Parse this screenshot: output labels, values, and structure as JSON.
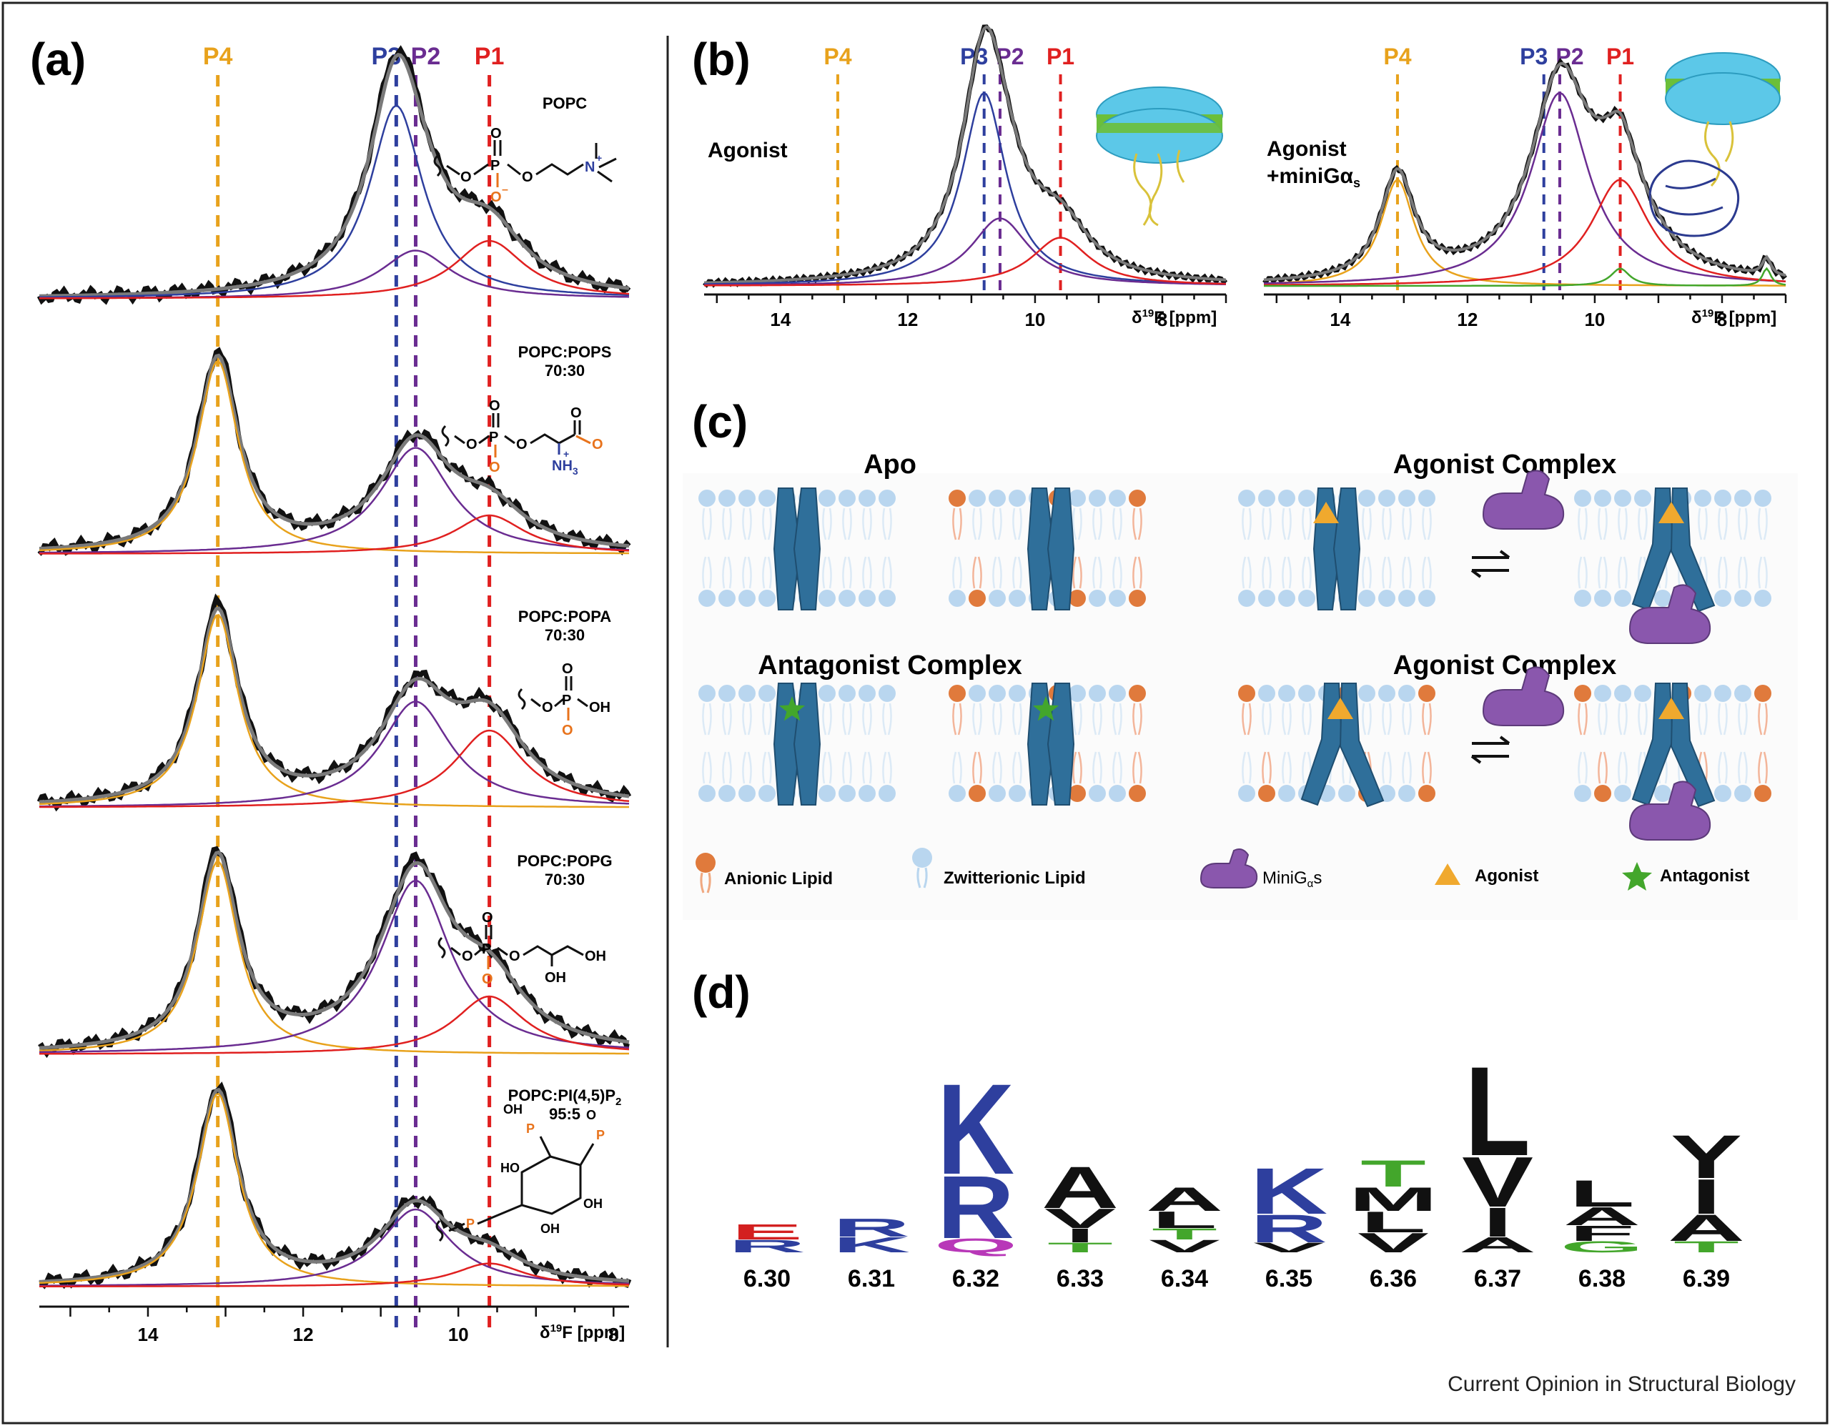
{
  "footer": {
    "journal": "Current Opinion in Structural Biology"
  },
  "colors": {
    "P4": "#e8a21c",
    "P3": "#2e3f9e",
    "P2": "#6a2c91",
    "P1": "#e02020",
    "fit": "#7a7a7a",
    "data": "#111111",
    "green": "#43a62b",
    "receptor": "#2f6f9a",
    "zwitter": "#b9d6ef",
    "anionic": "#e07a3c",
    "gprotein": "#8a57ad"
  },
  "panel_a": {
    "label": "(a)",
    "peaks": [
      "P4",
      "P3",
      "P2",
      "P1"
    ],
    "axis": {
      "ticks": [
        "14",
        "12",
        "10",
        "8"
      ],
      "xlabel_prefix": "δ",
      "xlabel_sup": "19",
      "xlabel_suffix": "F [ppm]"
    },
    "spectra": [
      {
        "name": "POPC",
        "ratio": "",
        "weights": {
          "P4": 0.0,
          "P3": 1.0,
          "P2": 0.25,
          "P1": 0.3
        }
      },
      {
        "name": "POPC:POPS",
        "ratio": "70:30",
        "weights": {
          "P4": 1.0,
          "P3": 0.0,
          "P2": 0.55,
          "P1": 0.2
        }
      },
      {
        "name": "POPC:POPA",
        "ratio": "70:30",
        "weights": {
          "P4": 1.0,
          "P3": 0.0,
          "P2": 0.55,
          "P1": 0.4
        }
      },
      {
        "name": "POPC:POPG",
        "ratio": "70:30",
        "weights": {
          "P4": 1.0,
          "P3": 0.0,
          "P2": 0.9,
          "P1": 0.3
        }
      },
      {
        "name": "POPC:PI(4,5)P",
        "name_sub": "2",
        "ratio": "95:5",
        "weights": {
          "P4": 1.0,
          "P3": 0.0,
          "P2": 0.4,
          "P1": 0.12
        }
      }
    ],
    "chem": {
      "popc": {
        "o1": "O",
        "p": "P",
        "o2": "O",
        "o_top": "O",
        "o_neg": "O",
        "charge_neg": "–",
        "n": "N",
        "charge_pos": "+"
      },
      "pops": {
        "o1": "O",
        "p": "P",
        "o2": "O",
        "o_top": "O",
        "o_neg": "O",
        "nh3": "NH",
        "nh3_sub": "3",
        "plus": "+",
        "coo_o": "O",
        "coo_neg": "O"
      },
      "popa": {
        "o1": "O",
        "p": "P",
        "o_top": "O",
        "oh": "OH",
        "o_neg": "O"
      },
      "popg": {
        "o1": "O",
        "p": "P",
        "o2": "O",
        "o_top": "O",
        "o_neg": "O",
        "oh1": "OH",
        "oh2": "OH"
      },
      "pip2": {
        "oh_a": "OH",
        "oh_b": "OH",
        "oh_c": "OH",
        "ho": "HO",
        "p1": "P",
        "p2": "P",
        "p3": "P",
        "o": "O"
      }
    }
  },
  "panel_b": {
    "label": "(b)",
    "axis": {
      "ticks": [
        "14",
        "12",
        "10",
        "8"
      ],
      "xlabel_prefix": "δ",
      "xlabel_sup": "19",
      "xlabel_suffix": "F [ppm]"
    },
    "left": {
      "condition": "Agonist",
      "peaks": [
        "P4",
        "P3",
        "P2",
        "P1"
      ]
    },
    "right": {
      "condition_line1": "Agonist",
      "condition_line2": "+miniGα",
      "condition_sub": "s",
      "peaks": [
        "P4",
        "P3",
        "P2",
        "P1"
      ]
    }
  },
  "panel_c": {
    "label": "(c)",
    "titles": {
      "apo": "Apo",
      "agonist_complex_top": "Agonist Complex",
      "antagonist": "Antagonist Complex",
      "agonist_complex_bottom": "Agonist Complex"
    },
    "legend": {
      "anionic": "Anionic Lipid",
      "zwitterionic": "Zwitterionic Lipid",
      "minig_prefix": "MiniG",
      "minig_sub": "α",
      "minig_suffix": "s",
      "agonist": "Agonist",
      "antagonist": "Antagonist"
    }
  },
  "panel_d": {
    "label": "(d)",
    "positions": [
      "6.30",
      "6.31",
      "6.32",
      "6.33",
      "6.34",
      "6.35",
      "6.36",
      "6.37",
      "6.38",
      "6.39"
    ],
    "stacks": [
      [
        {
          "l": "E",
          "c": "#d32020"
        },
        {
          "l": "R",
          "c": "#2e3f9e"
        }
      ],
      [
        {
          "l": "R",
          "c": "#2e3f9e"
        },
        {
          "l": "K",
          "c": "#2e3f9e"
        }
      ],
      [
        {
          "l": "K",
          "c": "#2e3f9e"
        },
        {
          "l": "R",
          "c": "#2e3f9e"
        },
        {
          "l": "Q",
          "c": "#b838b8"
        }
      ],
      [
        {
          "l": "A",
          "c": "#111111"
        },
        {
          "l": "V",
          "c": "#111111"
        },
        {
          "l": "I",
          "c": "#111111"
        },
        {
          "l": "T",
          "c": "#43a62b"
        }
      ],
      [
        {
          "l": "A",
          "c": "#111111"
        },
        {
          "l": "L",
          "c": "#111111"
        },
        {
          "l": "T",
          "c": "#43a62b"
        },
        {
          "l": "V",
          "c": "#111111"
        }
      ],
      [
        {
          "l": "K",
          "c": "#2e3f9e"
        },
        {
          "l": "R",
          "c": "#2e3f9e"
        },
        {
          "l": "V",
          "c": "#111111"
        }
      ],
      [
        {
          "l": "T",
          "c": "#43a62b"
        },
        {
          "l": "M",
          "c": "#111111"
        },
        {
          "l": "L",
          "c": "#111111"
        },
        {
          "l": "V",
          "c": "#111111"
        }
      ],
      [
        {
          "l": "L",
          "c": "#111111"
        },
        {
          "l": "V",
          "c": "#111111"
        },
        {
          "l": "I",
          "c": "#111111"
        },
        {
          "l": "A",
          "c": "#111111"
        }
      ],
      [
        {
          "l": "L",
          "c": "#111111"
        },
        {
          "l": "A",
          "c": "#111111"
        },
        {
          "l": "F",
          "c": "#111111"
        },
        {
          "l": "G",
          "c": "#43a62b"
        }
      ],
      [
        {
          "l": "Y",
          "c": "#111111"
        },
        {
          "l": "I",
          "c": "#111111"
        },
        {
          "l": "A",
          "c": "#111111"
        },
        {
          "l": "T",
          "c": "#43a62b"
        }
      ]
    ]
  }
}
